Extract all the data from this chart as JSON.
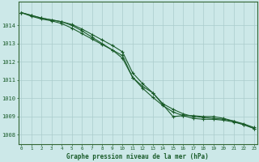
{
  "title": "Graphe pression niveau de la mer (hPa)",
  "bg_color": "#cce8e8",
  "grid_color": "#aacccc",
  "line_color": "#1a5c2a",
  "border_color": "#336633",
  "ylim": [
    1007.5,
    1015.3
  ],
  "yticks": [
    1008,
    1009,
    1010,
    1011,
    1012,
    1013,
    1014
  ],
  "xlim": [
    -0.3,
    23.3
  ],
  "series1": [
    1014.7,
    1014.5,
    1014.35,
    1014.25,
    1014.1,
    1013.85,
    1013.55,
    1013.25,
    1012.95,
    1012.65,
    1012.35,
    1011.15,
    1010.55,
    1010.05,
    1009.6,
    1009.25,
    1009.05,
    1008.9,
    1008.85,
    1008.85,
    1008.8,
    1008.7,
    1008.55,
    1008.35
  ],
  "series2": [
    1014.7,
    1014.55,
    1014.4,
    1014.3,
    1014.2,
    1014.05,
    1013.8,
    1013.5,
    1013.2,
    1012.9,
    1012.55,
    1011.4,
    1010.8,
    1010.3,
    1009.7,
    1009.4,
    1009.15,
    1009.0,
    1008.95,
    1008.9,
    1008.85,
    1008.75,
    1008.6,
    1008.4
  ],
  "series3": [
    1014.7,
    1014.55,
    1014.4,
    1014.3,
    1014.2,
    1014.0,
    1013.7,
    1013.35,
    1013.0,
    1012.65,
    1012.2,
    1011.15,
    1010.65,
    1010.3,
    1009.65,
    1009.0,
    1009.05,
    1009.05,
    1009.0,
    1009.0,
    1008.9,
    1008.75,
    1008.55,
    1008.35
  ]
}
